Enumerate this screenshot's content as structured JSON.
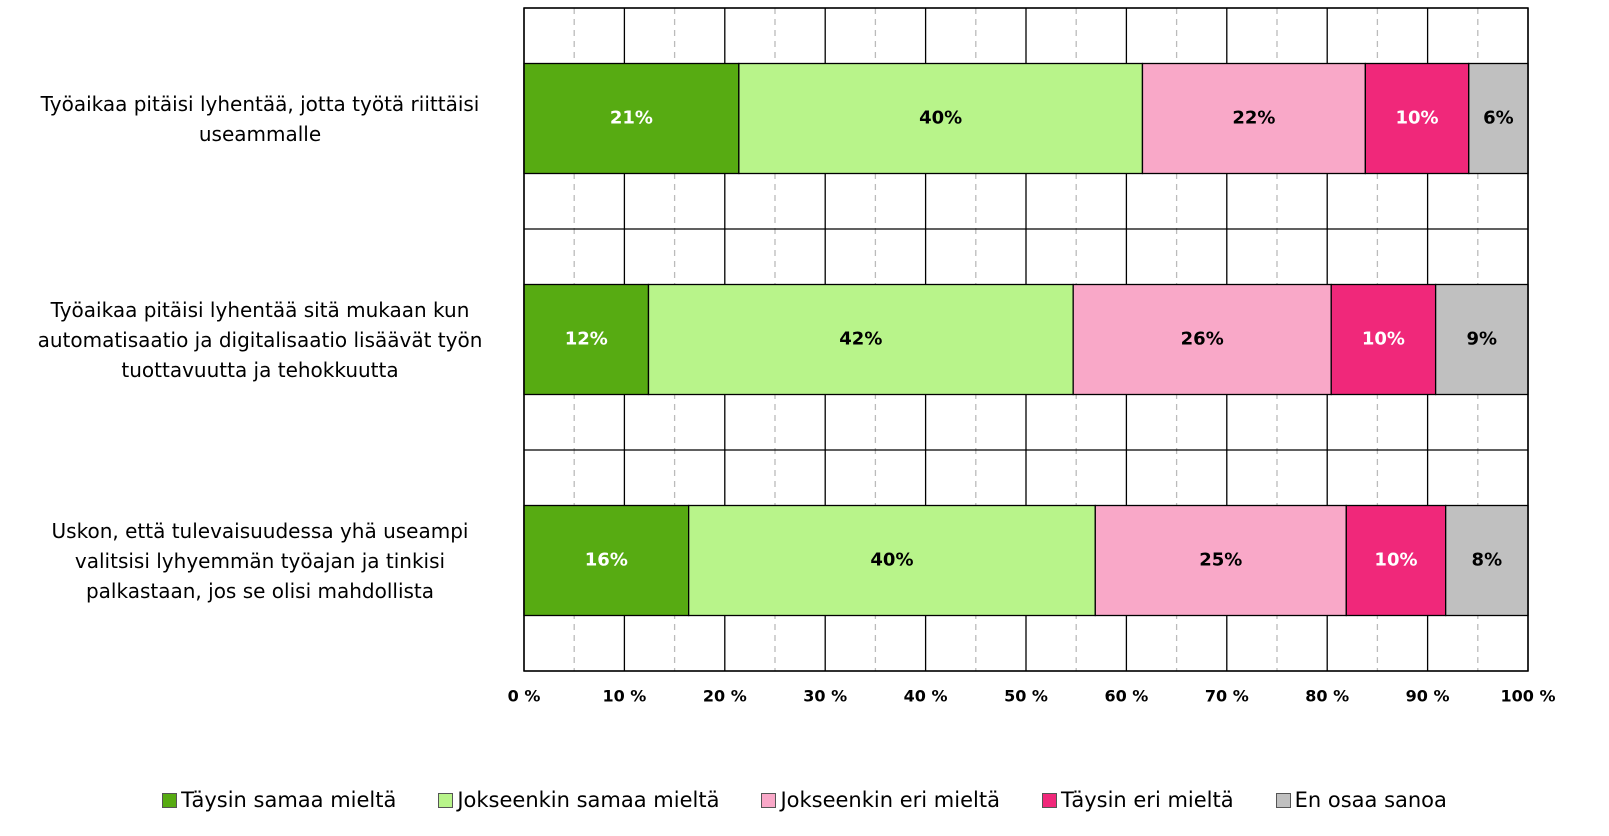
{
  "chart_data": {
    "type": "bar",
    "orientation": "horizontal",
    "stacked": true,
    "categories": [
      "Työaikaa pitäisi lyhentää, jotta työtä riittäisi useammalle",
      "Työaikaa pitäisi lyhentää sitä mukaan kun automatisaatio ja digitalisaatio lisäävät työn tuottavuutta ja tehokkuutta",
      "Uskon, että tulevaisuudessa yhä useampi valitsisi lyhyemmän työajan ja tinkisi palkastaan, jos se olisi mahdollista"
    ],
    "series": [
      {
        "name": "Täysin samaa mieltä",
        "color": "#57ab12",
        "label_color": "#ffffff",
        "values": [
          21.4,
          12.4,
          16.4
        ],
        "value_labels": [
          "21%",
          "12%",
          "16%"
        ]
      },
      {
        "name": "Jokseenkin samaa mieltä",
        "color": "#b8f48a",
        "label_color": "#000000",
        "values": [
          40.2,
          42.3,
          40.5
        ],
        "value_labels": [
          "40%",
          "42%",
          "40%"
        ]
      },
      {
        "name": "Jokseenkin eri mieltä",
        "color": "#f9a8c8",
        "label_color": "#000000",
        "values": [
          22.2,
          25.7,
          25.0
        ],
        "value_labels": [
          "22%",
          "26%",
          "25%"
        ]
      },
      {
        "name": "Täysin eri mieltä",
        "color": "#f0287a",
        "label_color": "#ffffff",
        "values": [
          10.3,
          10.4,
          9.9
        ],
        "value_labels": [
          "10%",
          "10%",
          "10%"
        ]
      },
      {
        "name": "En osaa sanoa",
        "color": "#c0c0c0",
        "label_color": "#000000",
        "values": [
          5.9,
          9.2,
          8.2
        ],
        "value_labels": [
          "6%",
          "9%",
          "8%"
        ]
      }
    ],
    "xlim": [
      0,
      100
    ],
    "xticks": [
      {
        "value": 0,
        "label": "0 %"
      },
      {
        "value": 10,
        "label": "10 %"
      },
      {
        "value": 20,
        "label": "20 %"
      },
      {
        "value": 30,
        "label": "30 %"
      },
      {
        "value": 40,
        "label": "40 %"
      },
      {
        "value": 50,
        "label": "50 %"
      },
      {
        "value": 60,
        "label": "60 %"
      },
      {
        "value": 70,
        "label": "70 %"
      },
      {
        "value": 80,
        "label": "80 %"
      },
      {
        "value": 90,
        "label": "90 %"
      },
      {
        "value": 100,
        "label": "100 %"
      }
    ],
    "minor_xticks": [
      5,
      15,
      25,
      35,
      45,
      55,
      65,
      75,
      85,
      95
    ],
    "grid": true,
    "legend": "bottom"
  }
}
